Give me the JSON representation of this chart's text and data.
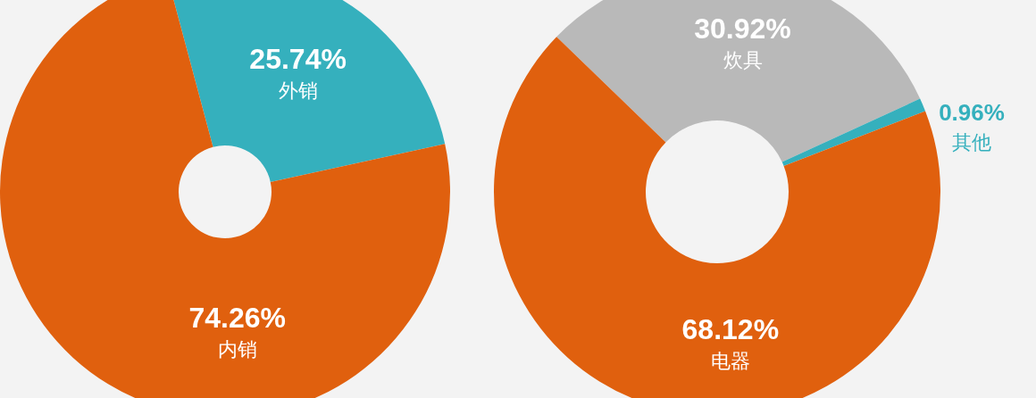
{
  "chart_data": [
    {
      "type": "donut",
      "categories": [
        "外销",
        "内销"
      ],
      "values": [
        25.74,
        74.26
      ],
      "colors": [
        "#35b0bd",
        "#e0600e"
      ],
      "value_labels": [
        "25.74%",
        "74.26%"
      ]
    },
    {
      "type": "donut",
      "categories": [
        "炊具",
        "其他",
        "电器"
      ],
      "values": [
        30.92,
        0.96,
        68.12
      ],
      "colors": [
        "#b9b9b9",
        "#35b0bd",
        "#e0600e"
      ],
      "value_labels": [
        "30.92%",
        "0.96%",
        "68.12%"
      ]
    }
  ]
}
